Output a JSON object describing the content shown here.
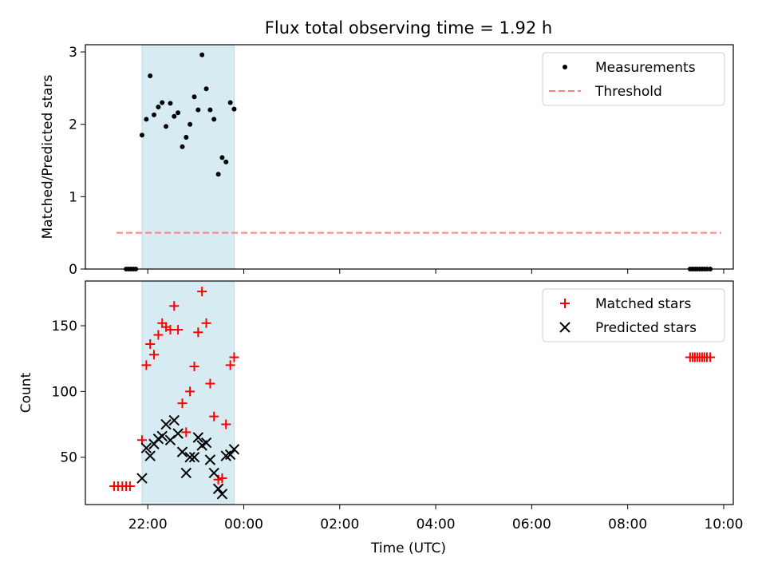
{
  "figure": {
    "title": "Flux total observing time = 1.92 h",
    "xlabel": "Time (UTC)",
    "x_ticks": [
      "22:00",
      "00:00",
      "02:00",
      "04:00",
      "06:00",
      "08:00",
      "10:00"
    ],
    "x_tick_hours": [
      22,
      24,
      26,
      28,
      30,
      32,
      34
    ],
    "shaded_interval_hours": [
      21.88,
      23.8
    ],
    "shade_color": "#add8e6"
  },
  "chart_data": [
    {
      "type": "scatter",
      "ylabel": "Matched/Predicted stars",
      "xlim_hours": [
        20.7,
        34.2
      ],
      "ylim": [
        0,
        3.1
      ],
      "y_ticks": [
        0,
        1,
        2,
        3
      ],
      "legend": {
        "placement": "top-right",
        "entries": [
          "Measurements",
          "Threshold"
        ]
      },
      "series": [
        {
          "name": "Measurements",
          "color": "#000000",
          "marker": "dot",
          "x_hours": [
            21.55,
            21.6,
            21.65,
            21.7,
            21.75,
            21.88,
            21.97,
            22.05,
            22.13,
            22.22,
            22.3,
            22.38,
            22.47,
            22.55,
            22.63,
            22.72,
            22.8,
            22.88,
            22.97,
            23.05,
            23.13,
            23.22,
            23.3,
            23.38,
            23.47,
            23.55,
            23.63,
            23.72,
            23.8,
            33.3,
            33.35,
            33.4,
            33.45,
            33.5,
            33.55,
            33.6,
            33.65,
            33.72
          ],
          "y": [
            0,
            0,
            0,
            0,
            0,
            1.85,
            2.07,
            2.67,
            2.13,
            2.24,
            2.3,
            1.97,
            2.29,
            2.11,
            2.16,
            1.69,
            1.82,
            2.0,
            2.38,
            2.2,
            2.96,
            2.49,
            2.2,
            2.07,
            1.31,
            1.54,
            1.48,
            2.3,
            2.21,
            0,
            0,
            0,
            0,
            0,
            0,
            0,
            0,
            0
          ]
        },
        {
          "name": "Threshold",
          "color": "#ff7f7f",
          "style": "dashed",
          "x_hours": [
            21.35,
            33.95
          ],
          "y": [
            0.5,
            0.5
          ]
        }
      ]
    },
    {
      "type": "scatter",
      "ylabel": "Count",
      "xlim_hours": [
        20.7,
        34.2
      ],
      "ylim": [
        14,
        184
      ],
      "y_ticks": [
        50,
        100,
        150
      ],
      "legend": {
        "placement": "top-right",
        "entries": [
          "Matched stars",
          "Predicted stars"
        ]
      },
      "series": [
        {
          "name": "Matched stars",
          "color": "#ff0000",
          "marker": "plus",
          "x_hours": [
            21.3,
            21.38,
            21.47,
            21.55,
            21.63,
            21.88,
            21.97,
            22.05,
            22.13,
            22.22,
            22.3,
            22.38,
            22.47,
            22.55,
            22.63,
            22.72,
            22.8,
            22.88,
            22.97,
            23.05,
            23.13,
            23.22,
            23.3,
            23.38,
            23.47,
            23.55,
            23.63,
            23.72,
            23.8,
            33.3,
            33.35,
            33.4,
            33.45,
            33.5,
            33.55,
            33.6,
            33.65,
            33.72
          ],
          "y": [
            28,
            28,
            28,
            28,
            28,
            63,
            120,
            136,
            128,
            143,
            152,
            149,
            147,
            165,
            147,
            91,
            69,
            100,
            119,
            145,
            176,
            152,
            106,
            81,
            33,
            34,
            75,
            120,
            126,
            126,
            126,
            126,
            126,
            126,
            126,
            126,
            126,
            126
          ]
        },
        {
          "name": "Predicted stars",
          "color": "#000000",
          "marker": "x",
          "x_hours": [
            21.88,
            21.97,
            22.05,
            22.13,
            22.22,
            22.3,
            22.38,
            22.47,
            22.55,
            22.63,
            22.72,
            22.8,
            22.88,
            22.97,
            23.05,
            23.13,
            23.22,
            23.3,
            23.38,
            23.47,
            23.55,
            23.63,
            23.72,
            23.8
          ],
          "y": [
            34,
            57,
            51,
            60,
            64,
            66,
            75,
            63,
            78,
            68,
            54,
            38,
            50,
            50,
            65,
            59,
            61,
            48,
            38,
            26,
            22,
            51,
            52,
            56
          ]
        }
      ]
    }
  ]
}
